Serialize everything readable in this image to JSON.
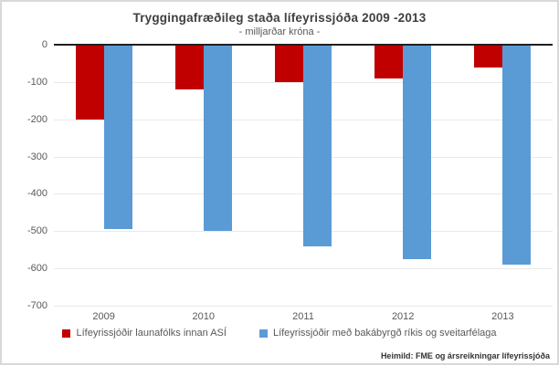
{
  "footer": {
    "source": "Heimild: FME og ársreikningar lífeyrissjóða"
  },
  "chart_data": {
    "type": "bar",
    "title": "Tryggingafræðileg staða lífeyrissjóða 2009 -2013",
    "subtitle": "- milljarðar króna -",
    "categories": [
      "2009",
      "2010",
      "2011",
      "2012",
      "2013"
    ],
    "series": [
      {
        "name": "Lífeyrissjóðir launafólks innan ASÍ",
        "color": "#c00000",
        "values": [
          -200,
          -120,
          -100,
          -90,
          -60
        ]
      },
      {
        "name": "Lífeyrissjóðir með bakábyrgð ríkis og sveitarfélaga",
        "color": "#5b9bd5",
        "values": [
          -495,
          -500,
          -540,
          -575,
          -590
        ]
      }
    ],
    "xlabel": "",
    "ylabel": "",
    "ylim": [
      -700,
      0
    ],
    "yticks": [
      0,
      -100,
      -200,
      -300,
      -400,
      -500,
      -600,
      -700
    ],
    "grid": true,
    "legend_position": "bottom",
    "colors": {
      "axis_line": "#1f1f1f",
      "gridline": "#e9e9e9",
      "labels": "#595959",
      "title": "#404040"
    }
  }
}
